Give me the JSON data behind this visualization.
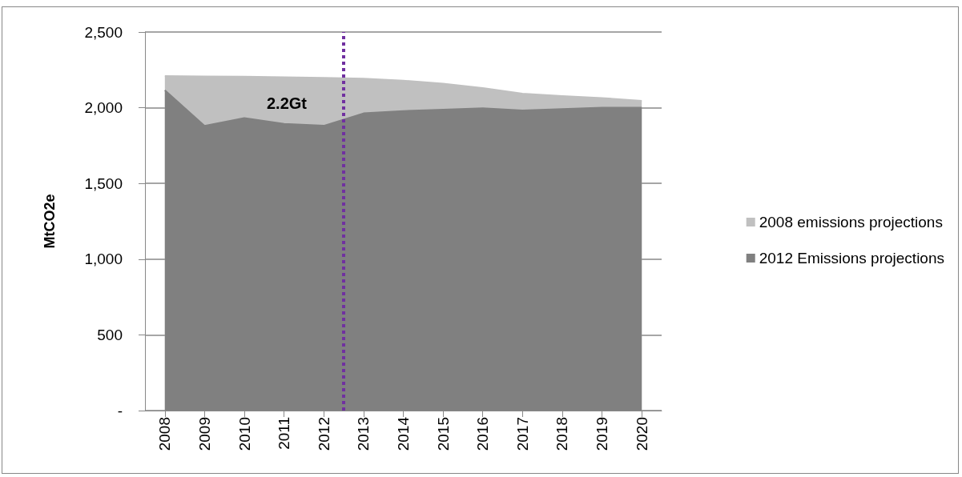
{
  "chart_data": {
    "type": "area",
    "ylabel": "MtCO2e",
    "x": [
      2008,
      2009,
      2010,
      2011,
      2012,
      2013,
      2014,
      2015,
      2016,
      2017,
      2018,
      2019,
      2020
    ],
    "series": [
      {
        "name": "2008 emissions projections",
        "color": "#c0c0c0",
        "values": [
          2209,
          2207,
          2205,
          2202,
          2198,
          2192,
          2179,
          2159,
          2130,
          2093,
          2077,
          2064,
          2046
        ]
      },
      {
        "name": "2012 Emissions projections",
        "color": "#808080",
        "values": [
          2115,
          1880,
          1932,
          1894,
          1881,
          1963,
          1978,
          1987,
          1996,
          1982,
          1991,
          2000,
          2000
        ]
      }
    ],
    "xlim": [
      2007.5,
      2020.5
    ],
    "xticks": [
      2008,
      2009,
      2010,
      2011,
      2012,
      2013,
      2014,
      2015,
      2016,
      2017,
      2018,
      2019,
      2020
    ],
    "ylim": [
      0,
      2500
    ],
    "yticks": [
      {
        "value": 0,
        "label": "-"
      },
      {
        "value": 500,
        "label": "500"
      },
      {
        "value": 1000,
        "label": "1,000"
      },
      {
        "value": 1500,
        "label": "1,500"
      },
      {
        "value": 2000,
        "label": "2,000"
      },
      {
        "value": 2500,
        "label": "2,500"
      }
    ],
    "ref_lines": [
      {
        "axis": "x",
        "value": 2012.5,
        "color": "#7030a0",
        "line_style": "dotted"
      }
    ],
    "annotations": [
      "2.2Gt"
    ],
    "grid": "y",
    "legend": "right",
    "marker": "none"
  }
}
